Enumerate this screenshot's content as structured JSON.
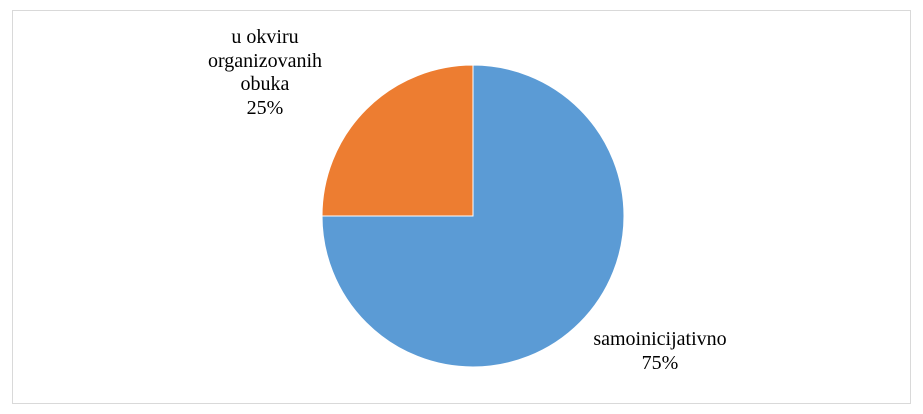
{
  "chart_data": {
    "type": "pie",
    "categories": [
      "samoinicijativno",
      "u okviru organizovanih obuka"
    ],
    "values": [
      75,
      25
    ],
    "value_labels": [
      "75%",
      "25%"
    ],
    "colors": [
      "#5b9bd5",
      "#ed7d31"
    ]
  }
}
